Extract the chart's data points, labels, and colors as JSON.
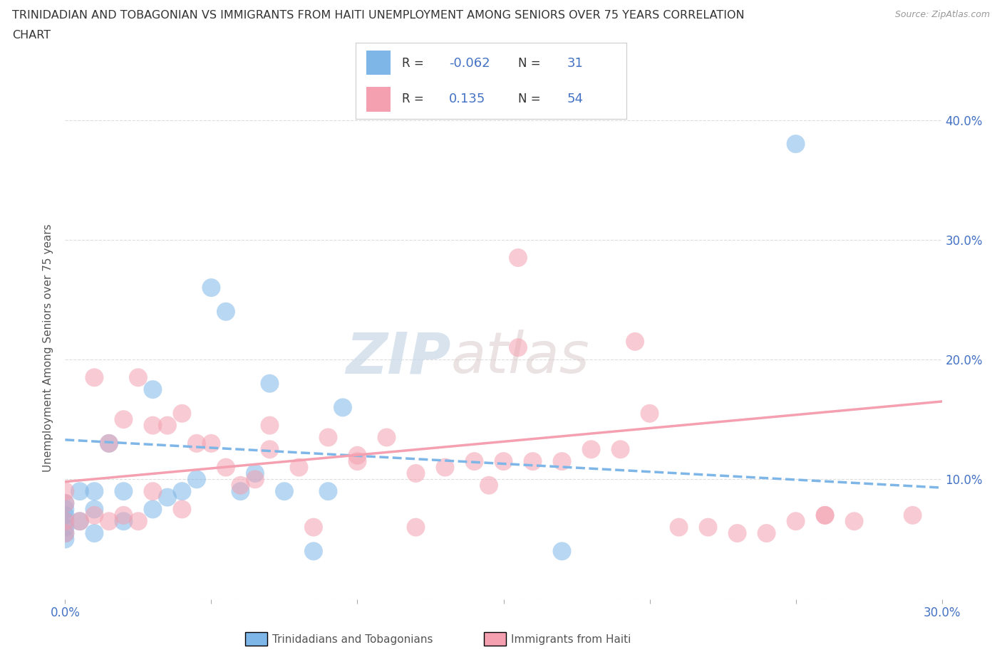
{
  "title_line1": "TRINIDADIAN AND TOBAGONIAN VS IMMIGRANTS FROM HAITI UNEMPLOYMENT AMONG SENIORS OVER 75 YEARS CORRELATION",
  "title_line2": "CHART",
  "source_text": "Source: ZipAtlas.com",
  "ylabel": "Unemployment Among Seniors over 75 years",
  "xlim": [
    0.0,
    0.3
  ],
  "ylim": [
    0.0,
    0.42
  ],
  "xticks": [
    0.0,
    0.05,
    0.1,
    0.15,
    0.2,
    0.25,
    0.3
  ],
  "yticks_right": [
    0.0,
    0.1,
    0.2,
    0.3,
    0.4
  ],
  "yticklabels_right": [
    "",
    "10.0%",
    "20.0%",
    "30.0%",
    "40.0%"
  ],
  "blue_color": "#7EB6E8",
  "pink_color": "#F4A0B0",
  "blue_line_start_y": 0.133,
  "blue_line_end_y": 0.093,
  "pink_line_start_y": 0.098,
  "pink_line_end_y": 0.165,
  "blue_scatter_x": [
    0.0,
    0.0,
    0.0,
    0.0,
    0.0,
    0.0,
    0.0,
    0.005,
    0.005,
    0.01,
    0.01,
    0.01,
    0.015,
    0.02,
    0.02,
    0.03,
    0.03,
    0.035,
    0.04,
    0.045,
    0.05,
    0.055,
    0.06,
    0.065,
    0.07,
    0.075,
    0.085,
    0.09,
    0.095,
    0.17,
    0.25
  ],
  "blue_scatter_y": [
    0.05,
    0.055,
    0.06,
    0.065,
    0.07,
    0.075,
    0.08,
    0.065,
    0.09,
    0.055,
    0.075,
    0.09,
    0.13,
    0.065,
    0.09,
    0.075,
    0.175,
    0.085,
    0.09,
    0.1,
    0.26,
    0.24,
    0.09,
    0.105,
    0.18,
    0.09,
    0.04,
    0.09,
    0.16,
    0.04,
    0.38
  ],
  "pink_scatter_x": [
    0.0,
    0.0,
    0.0,
    0.0,
    0.005,
    0.01,
    0.01,
    0.015,
    0.015,
    0.02,
    0.02,
    0.025,
    0.025,
    0.03,
    0.03,
    0.035,
    0.04,
    0.04,
    0.045,
    0.05,
    0.055,
    0.06,
    0.065,
    0.07,
    0.07,
    0.08,
    0.085,
    0.09,
    0.1,
    0.11,
    0.12,
    0.13,
    0.14,
    0.145,
    0.15,
    0.155,
    0.16,
    0.17,
    0.18,
    0.19,
    0.2,
    0.21,
    0.22,
    0.23,
    0.24,
    0.25,
    0.26,
    0.27,
    0.155,
    0.195,
    0.26,
    0.1,
    0.12,
    0.29
  ],
  "pink_scatter_y": [
    0.055,
    0.065,
    0.08,
    0.09,
    0.065,
    0.07,
    0.185,
    0.065,
    0.13,
    0.07,
    0.15,
    0.065,
    0.185,
    0.09,
    0.145,
    0.145,
    0.075,
    0.155,
    0.13,
    0.13,
    0.11,
    0.095,
    0.1,
    0.125,
    0.145,
    0.11,
    0.06,
    0.135,
    0.12,
    0.135,
    0.105,
    0.11,
    0.115,
    0.095,
    0.115,
    0.285,
    0.115,
    0.115,
    0.125,
    0.125,
    0.155,
    0.06,
    0.06,
    0.055,
    0.055,
    0.065,
    0.07,
    0.065,
    0.21,
    0.215,
    0.07,
    0.115,
    0.06,
    0.07
  ],
  "watermark_zip": "ZIP",
  "watermark_atlas": "atlas",
  "background_color": "#FFFFFF",
  "grid_color": "#CCCCCC"
}
